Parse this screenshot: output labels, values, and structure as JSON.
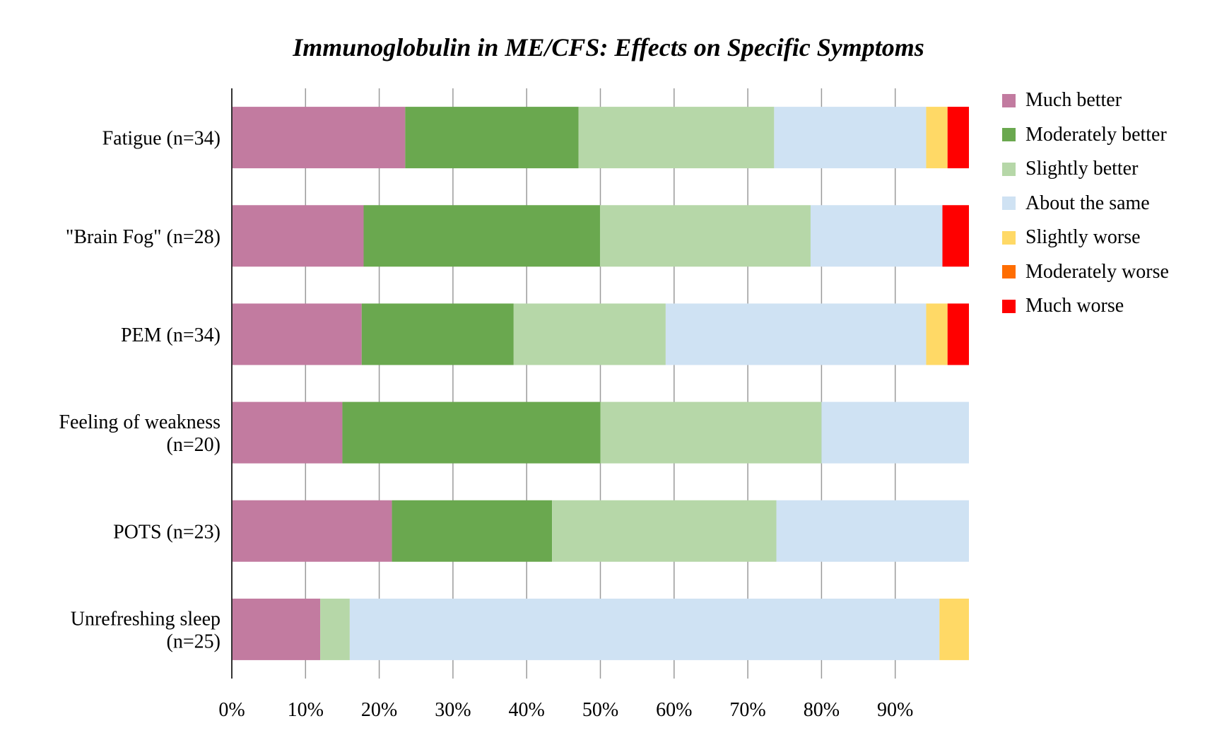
{
  "chart_data": {
    "type": "bar",
    "orientation": "horizontal",
    "stacked": true,
    "title": "Immunoglobulin in ME/CFS: Effects on Specific Symptoms",
    "categories": [
      [
        "Fatigue (n=34)"
      ],
      [
        "\"Brain Fog\" (n=28)"
      ],
      [
        "PEM (n=34)"
      ],
      [
        "Feeling of weakness",
        "(n=20)"
      ],
      [
        "POTS (n=23)"
      ],
      [
        "Unrefreshing sleep",
        "(n=25)"
      ]
    ],
    "series": [
      {
        "name": "Much better",
        "color": "#c27ba0",
        "values": [
          23.5,
          17.9,
          17.6,
          15,
          21.7,
          12
        ]
      },
      {
        "name": "Moderately better",
        "color": "#6aa84f",
        "values": [
          23.5,
          32.1,
          20.6,
          35,
          21.7,
          0
        ]
      },
      {
        "name": "Slightly better",
        "color": "#b6d7a8",
        "values": [
          26.5,
          28.6,
          20.6,
          30,
          30.4,
          4
        ]
      },
      {
        "name": "About the same",
        "color": "#cfe2f3",
        "values": [
          20.6,
          17.9,
          35.3,
          20,
          26.1,
          80
        ]
      },
      {
        "name": "Slightly worse",
        "color": "#ffd966",
        "values": [
          2.9,
          0,
          2.9,
          0,
          0,
          4
        ]
      },
      {
        "name": "Moderately worse",
        "color": "#ff6d01",
        "values": [
          0,
          0,
          0,
          0,
          0,
          0
        ]
      },
      {
        "name": "Much worse",
        "color": "#ff0000",
        "values": [
          2.9,
          3.6,
          2.9,
          0,
          0,
          0
        ]
      }
    ],
    "xticks": [
      "0%",
      "10%",
      "20%",
      "30%",
      "40%",
      "50%",
      "60%",
      "70%",
      "80%",
      "90%"
    ],
    "xlim": [
      0,
      100
    ],
    "grid": true,
    "legend_position": "right"
  }
}
